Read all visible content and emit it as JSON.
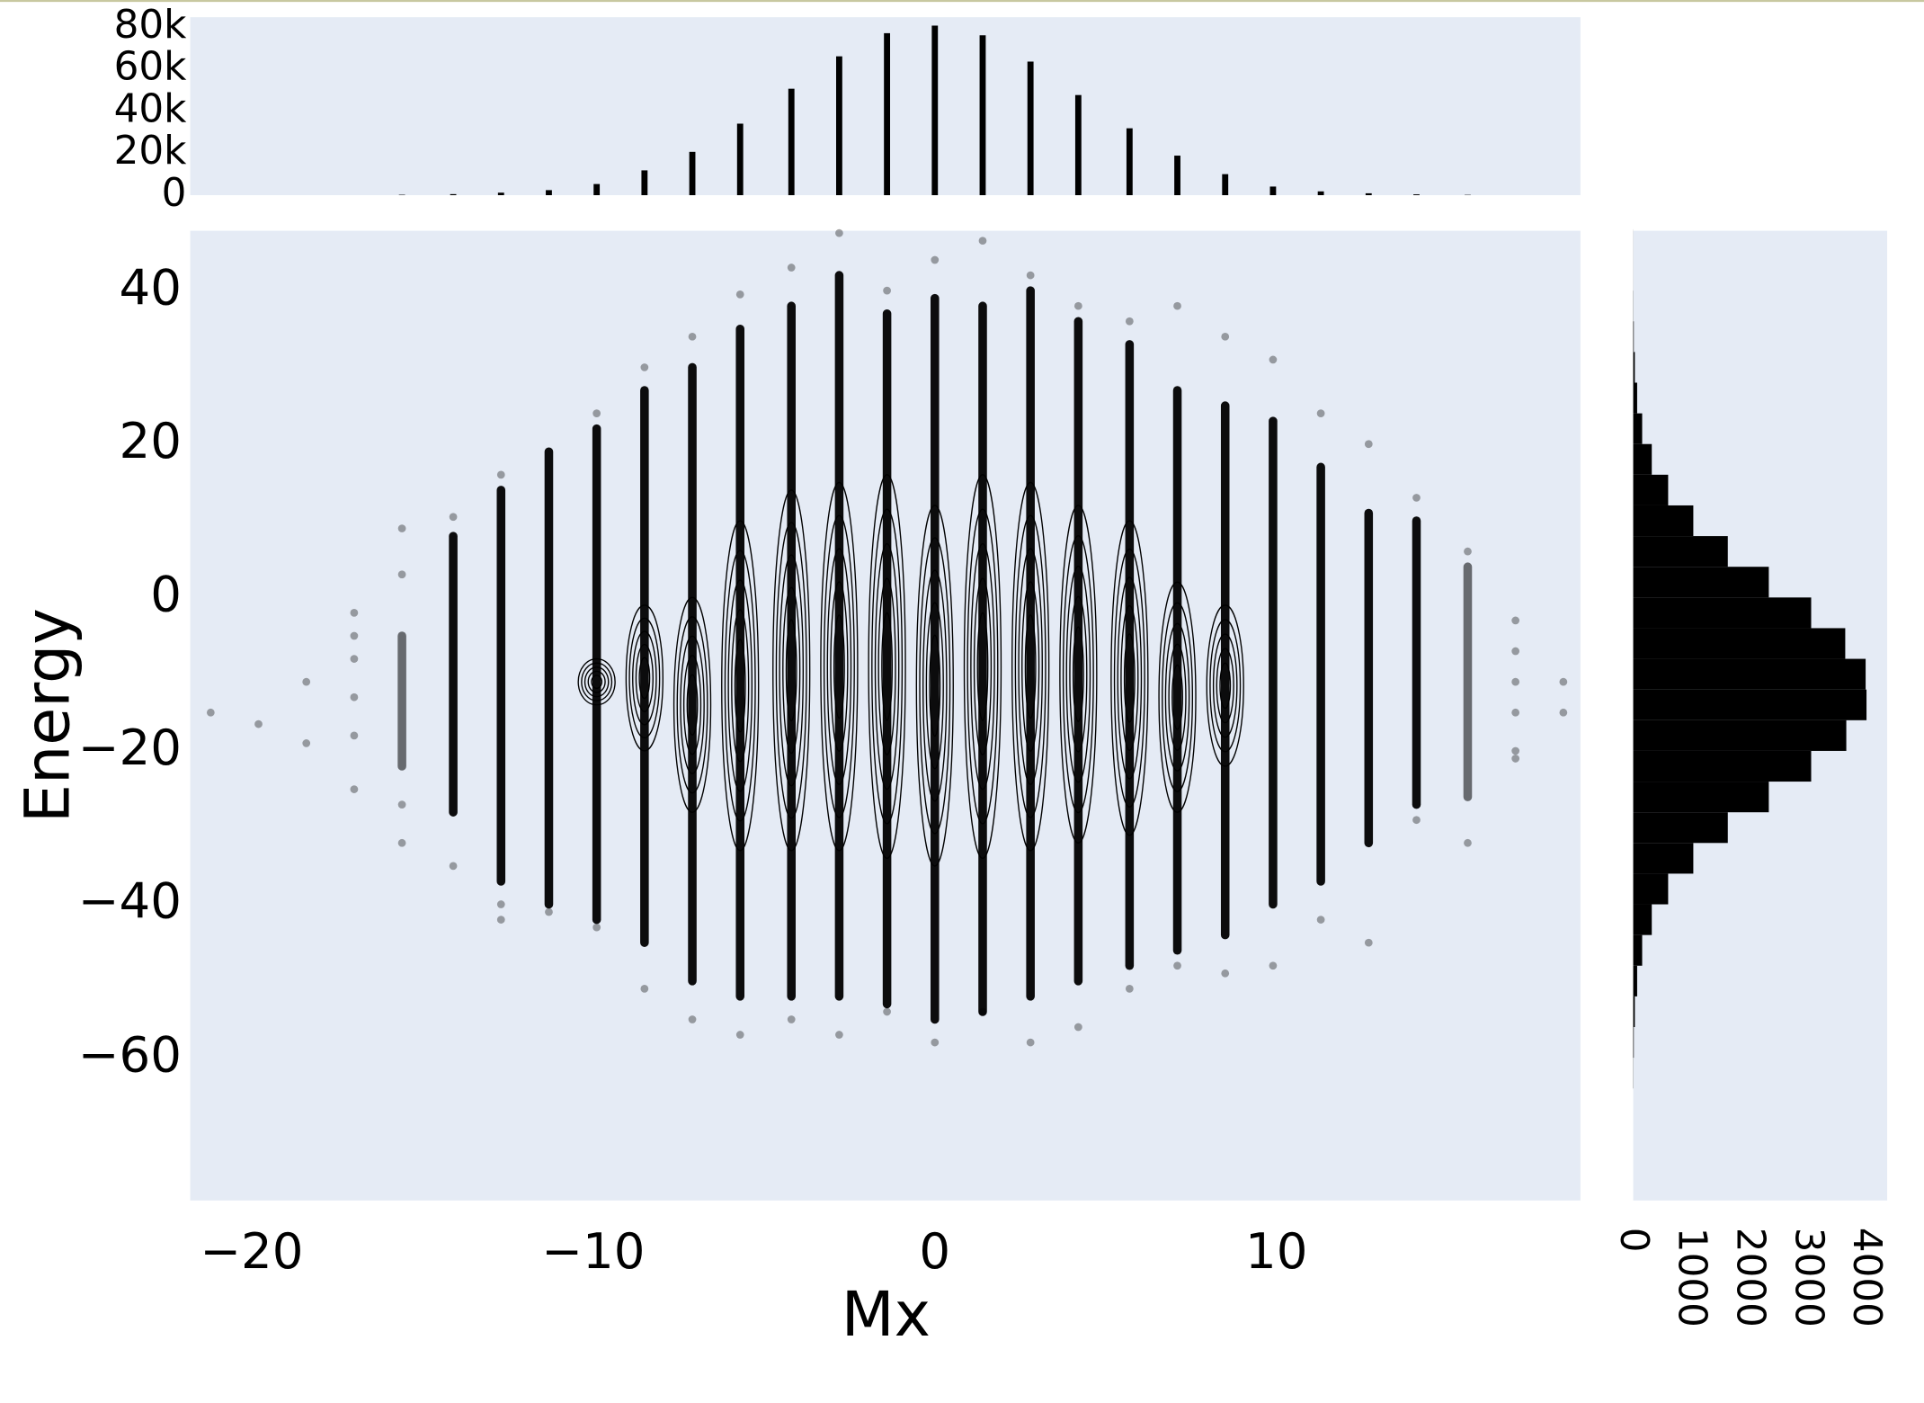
{
  "chart_data": [
    {
      "type": "strip",
      "xlabel": "Mx",
      "ylabel": "Energy",
      "xlim": [
        -21.8,
        18.9
      ],
      "ylim": [
        -78.6,
        47.8
      ],
      "xticks": [
        {
          "value": -20,
          "label": "−20"
        },
        {
          "value": -10,
          "label": "−10"
        },
        0,
        10
      ],
      "yticks": [
        {
          "value": -60,
          "label": "−60"
        },
        {
          "value": -40,
          "label": "−40"
        },
        {
          "value": -20,
          "label": "−20"
        },
        0,
        20,
        40
      ],
      "color": "#000000",
      "x": [
        -21.2,
        -19.8,
        -18.4,
        -17.0,
        -15.6,
        -14.1,
        -12.7,
        -11.3,
        -9.9,
        -8.5,
        -7.1,
        -5.7,
        -4.2,
        -2.8,
        -1.4,
        0,
        1.4,
        2.8,
        4.2,
        5.7,
        7.1,
        8.5,
        9.9,
        11.3,
        12.7,
        14.1,
        15.6,
        17.0,
        18.4
      ],
      "low": [
        null,
        null,
        null,
        null,
        -22,
        -28,
        -37,
        -40,
        -42,
        -45,
        -50,
        -52,
        -52,
        -52,
        -53,
        -55,
        -54,
        -52,
        -50,
        -48,
        -46,
        -44,
        -40,
        -37,
        -32,
        -27,
        -26,
        null,
        null
      ],
      "high": [
        null,
        null,
        null,
        null,
        -5,
        8,
        14,
        19,
        22,
        27,
        30,
        35,
        38,
        42,
        37,
        39,
        38,
        40,
        36,
        33,
        27,
        25,
        23,
        17,
        11,
        10,
        4,
        null,
        null
      ],
      "contour_low": [
        null,
        null,
        null,
        null,
        null,
        null,
        null,
        null,
        -14,
        -20,
        -28,
        -33,
        -33,
        -33,
        -34,
        -35,
        -34,
        -33,
        -32,
        -31,
        -28,
        -22,
        null,
        null,
        null,
        null,
        null,
        null,
        null
      ],
      "contour_high": [
        null,
        null,
        null,
        null,
        null,
        null,
        null,
        null,
        -8,
        -1,
        0,
        10,
        14,
        15,
        16,
        12,
        16,
        15,
        12,
        10,
        2,
        -1,
        null,
        null,
        null,
        null,
        null,
        null,
        null
      ],
      "points_x": [
        -21.2,
        -19.8,
        -18.4,
        -18.4,
        -17.0,
        -17.0,
        -17.0,
        -17.0,
        -17.0,
        -17.0,
        -15.6,
        -15.6,
        -15.6,
        -15.6,
        -14.1,
        -14.1,
        -12.7,
        -12.7,
        -12.7,
        -11.3,
        -9.9,
        -9.9,
        -8.5,
        -8.5,
        -7.1,
        -7.1,
        -5.7,
        -5.7,
        -4.2,
        -4.2,
        -2.8,
        -2.8,
        -1.4,
        -1.4,
        0,
        0,
        1.4,
        1.4,
        2.8,
        2.8,
        4.2,
        4.2,
        5.7,
        5.7,
        7.1,
        7.1,
        8.5,
        8.5,
        9.9,
        9.9,
        11.3,
        11.3,
        12.7,
        12.7,
        14.1,
        14.1,
        15.6,
        15.6,
        17.0,
        17.0,
        17.0,
        17.0,
        17.0,
        17.0,
        18.4,
        18.4
      ],
      "points_y": [
        -15,
        -16.5,
        -11,
        -19,
        -2,
        -5,
        -8,
        -13,
        -18,
        -25,
        9,
        3,
        -27,
        -32,
        10.5,
        -35,
        16,
        -40,
        -42,
        -41,
        24,
        -43,
        30,
        -51,
        34,
        -55,
        39.5,
        -57,
        43,
        -55,
        47.5,
        -57,
        40,
        -54,
        44,
        -58,
        46.5,
        -54,
        42,
        -58,
        38,
        -56,
        36,
        -51,
        38,
        -48,
        34,
        -49,
        31,
        -48,
        24,
        -42,
        20,
        -45,
        13,
        -29,
        6,
        -32,
        -3,
        -7,
        -11,
        -15,
        -20,
        -21,
        -11,
        -15
      ]
    },
    {
      "type": "bar",
      "xlim": [
        -21.8,
        18.9
      ],
      "ylim": [
        0,
        84600
      ],
      "yticks": [
        0,
        {
          "value": 20000,
          "label": "20k"
        },
        {
          "value": 40000,
          "label": "40k"
        },
        {
          "value": 60000,
          "label": "60k"
        },
        {
          "value": 80000,
          "label": "80k"
        }
      ],
      "color": "#000000",
      "x": [
        -21.2,
        -19.8,
        -18.4,
        -17.0,
        -15.6,
        -14.1,
        -12.7,
        -11.3,
        -9.9,
        -8.5,
        -7.1,
        -5.7,
        -4.2,
        -2.8,
        -1.4,
        0,
        1.4,
        2.8,
        4.2,
        5.7,
        7.1,
        8.5,
        9.9,
        11.3,
        12.7,
        14.1,
        15.6,
        17.0,
        18.4
      ],
      "values": [
        0,
        0,
        0,
        0,
        200,
        500,
        1200,
        2400,
        5300,
        11800,
        20600,
        34000,
        50600,
        66000,
        77000,
        80600,
        76000,
        63500,
        47600,
        31800,
        18800,
        10000,
        4100,
        1800,
        900,
        400,
        150,
        0,
        0
      ]
    },
    {
      "type": "histogram",
      "orientation": "horizontal",
      "xlim": [
        0,
        4360
      ],
      "ylim": [
        -78.6,
        47.8
      ],
      "xticks": [
        0,
        1000,
        2000,
        3000,
        4000
      ],
      "color": "#000000",
      "bins": [
        -64,
        -60,
        -56,
        -52,
        -48,
        -44,
        -40,
        -36,
        -32,
        -28,
        -24,
        -20,
        -16,
        -12,
        -8,
        -4,
        0,
        4,
        8,
        12,
        16,
        20,
        24,
        28,
        32,
        36,
        40,
        44,
        48
      ],
      "values": [
        3,
        10,
        28,
        68,
        154,
        319,
        600,
        1032,
        1624,
        2328,
        3055,
        3658,
        4005,
        3990,
        3640,
        3055,
        2328,
        1624,
        1032,
        600,
        319,
        154,
        68,
        28,
        10,
        3,
        1,
        1
      ]
    }
  ]
}
